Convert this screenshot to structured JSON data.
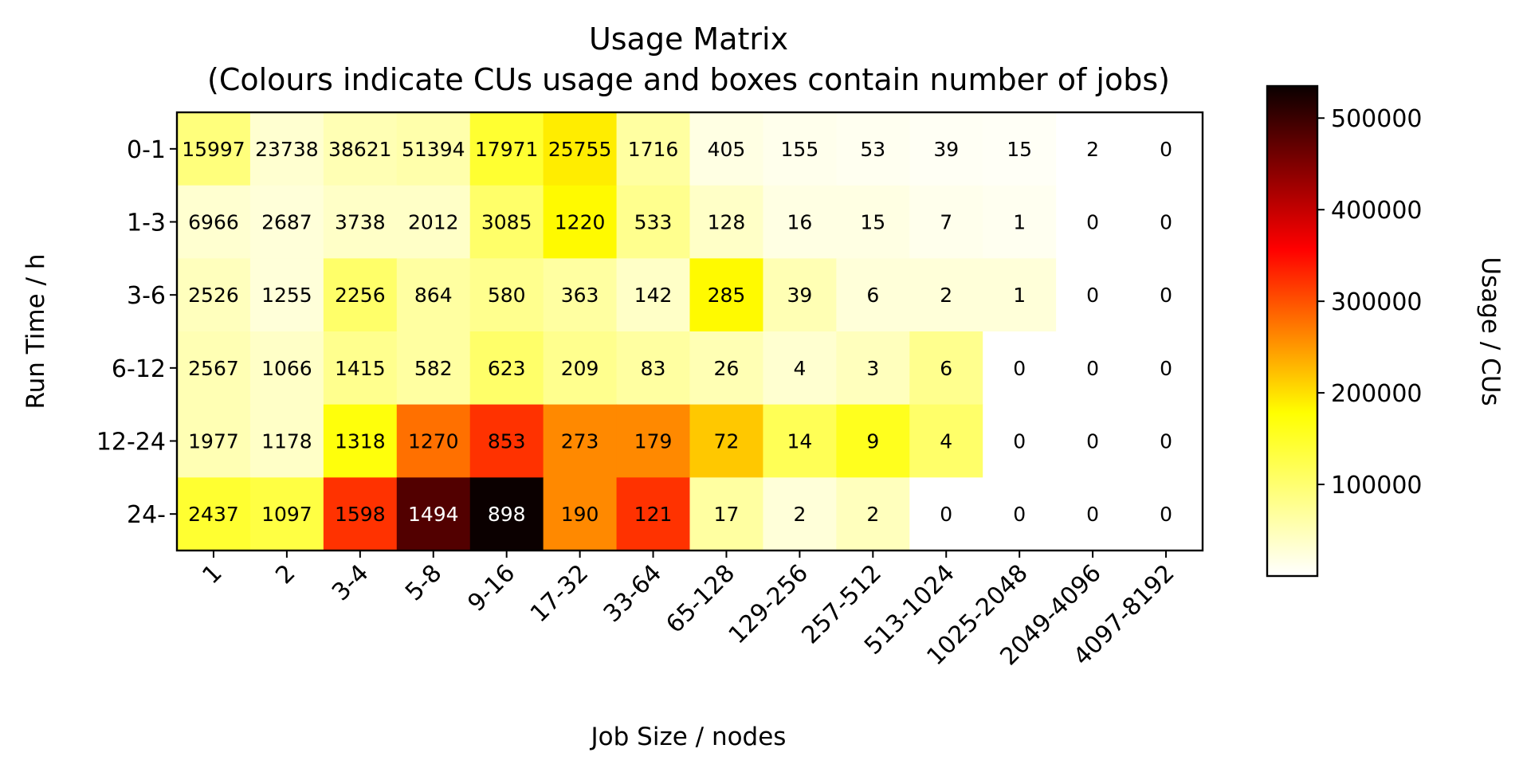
{
  "chart_data": {
    "type": "heatmap",
    "title": "Usage Matrix",
    "subtitle": "(Colours indicate CUs usage and boxes contain number of jobs)",
    "xlabel": "Job Size / nodes",
    "ylabel": "Run Time / h",
    "x_categories": [
      "1",
      "2",
      "3-4",
      "5-8",
      "9-16",
      "17-32",
      "33-64",
      "65-128",
      "129-256",
      "257-512",
      "513-1024",
      "1025-2048",
      "2049-4096",
      "4097-8192"
    ],
    "y_categories": [
      "0-1",
      "1-3",
      "3-6",
      "6-12",
      "12-24",
      "24-"
    ],
    "job_counts": [
      [
        15997,
        23738,
        38621,
        51394,
        17971,
        25755,
        1716,
        405,
        155,
        53,
        39,
        15,
        2,
        0
      ],
      [
        6966,
        2687,
        3738,
        2012,
        3085,
        1220,
        533,
        128,
        16,
        15,
        7,
        1,
        0,
        0
      ],
      [
        2526,
        1255,
        2256,
        864,
        580,
        363,
        142,
        285,
        39,
        6,
        2,
        1,
        0,
        0
      ],
      [
        2567,
        1066,
        1415,
        582,
        623,
        209,
        83,
        26,
        4,
        3,
        6,
        0,
        0,
        0
      ],
      [
        1977,
        1178,
        1318,
        1270,
        853,
        273,
        179,
        72,
        14,
        9,
        4,
        0,
        0,
        0
      ],
      [
        2437,
        1097,
        1598,
        1494,
        898,
        190,
        121,
        17,
        2,
        2,
        0,
        0,
        0,
        0
      ]
    ],
    "job_count_labels": [
      [
        "15997",
        "23738",
        "38621",
        "51394",
        "17971",
        "25755",
        "1716",
        "405",
        "155",
        "53",
        "39",
        "15",
        "2",
        "0"
      ],
      [
        "6966",
        "2687",
        "3738",
        "2012",
        "3085",
        "1220",
        "533",
        "128",
        "16",
        "15",
        "7",
        "1",
        "0",
        "0"
      ],
      [
        "2526",
        "1255",
        "2256",
        "864",
        "580",
        "363",
        "142",
        "285",
        "39",
        "6",
        "2",
        "1",
        "0",
        "0"
      ],
      [
        "2567",
        "1066",
        "1415",
        "582",
        "623",
        "209",
        "83",
        "26",
        "4",
        "3",
        "6",
        "0",
        "0",
        "0"
      ],
      [
        "1977",
        "1178",
        "1318",
        "1270",
        "853",
        "273",
        "179",
        "72",
        "14",
        "9",
        "4",
        "0",
        "0",
        "0"
      ],
      [
        "2437",
        "1097",
        "1598",
        "1494",
        "898",
        "190",
        "121",
        "17",
        "2",
        "2",
        "0",
        "0",
        "0",
        "0"
      ]
    ],
    "usage_cus": [
      [
        70000,
        25000,
        40000,
        45000,
        110000,
        150000,
        50000,
        15000,
        10000,
        8000,
        6000,
        5000,
        null,
        null
      ],
      [
        25000,
        20000,
        30000,
        30000,
        80000,
        140000,
        60000,
        30000,
        15000,
        15000,
        10000,
        8000,
        null,
        null
      ],
      [
        35000,
        20000,
        80000,
        50000,
        60000,
        50000,
        30000,
        140000,
        40000,
        20000,
        20000,
        20000,
        null,
        null
      ],
      [
        40000,
        30000,
        60000,
        50000,
        80000,
        60000,
        50000,
        40000,
        25000,
        35000,
        60000,
        null,
        null,
        null
      ],
      [
        40000,
        30000,
        130000,
        250000,
        300000,
        230000,
        230000,
        180000,
        90000,
        120000,
        80000,
        null,
        null,
        null
      ],
      [
        110000,
        100000,
        300000,
        480000,
        535000,
        230000,
        300000,
        50000,
        20000,
        35000,
        null,
        null,
        null,
        null
      ]
    ],
    "colorbar": {
      "label": "Usage / CUs",
      "colormap": "hot_r",
      "min": 0,
      "max": 535000,
      "ticks": [
        100000,
        200000,
        300000,
        400000,
        500000
      ],
      "tick_labels": [
        "100000",
        "200000",
        "300000",
        "400000",
        "500000"
      ]
    },
    "grid": false,
    "legend": "none",
    "colors": {
      "low": "#ffffff",
      "mid_low": "#ffff00",
      "mid": "#ff8800",
      "mid_high": "#ff0000",
      "high": "#0a0000"
    }
  }
}
